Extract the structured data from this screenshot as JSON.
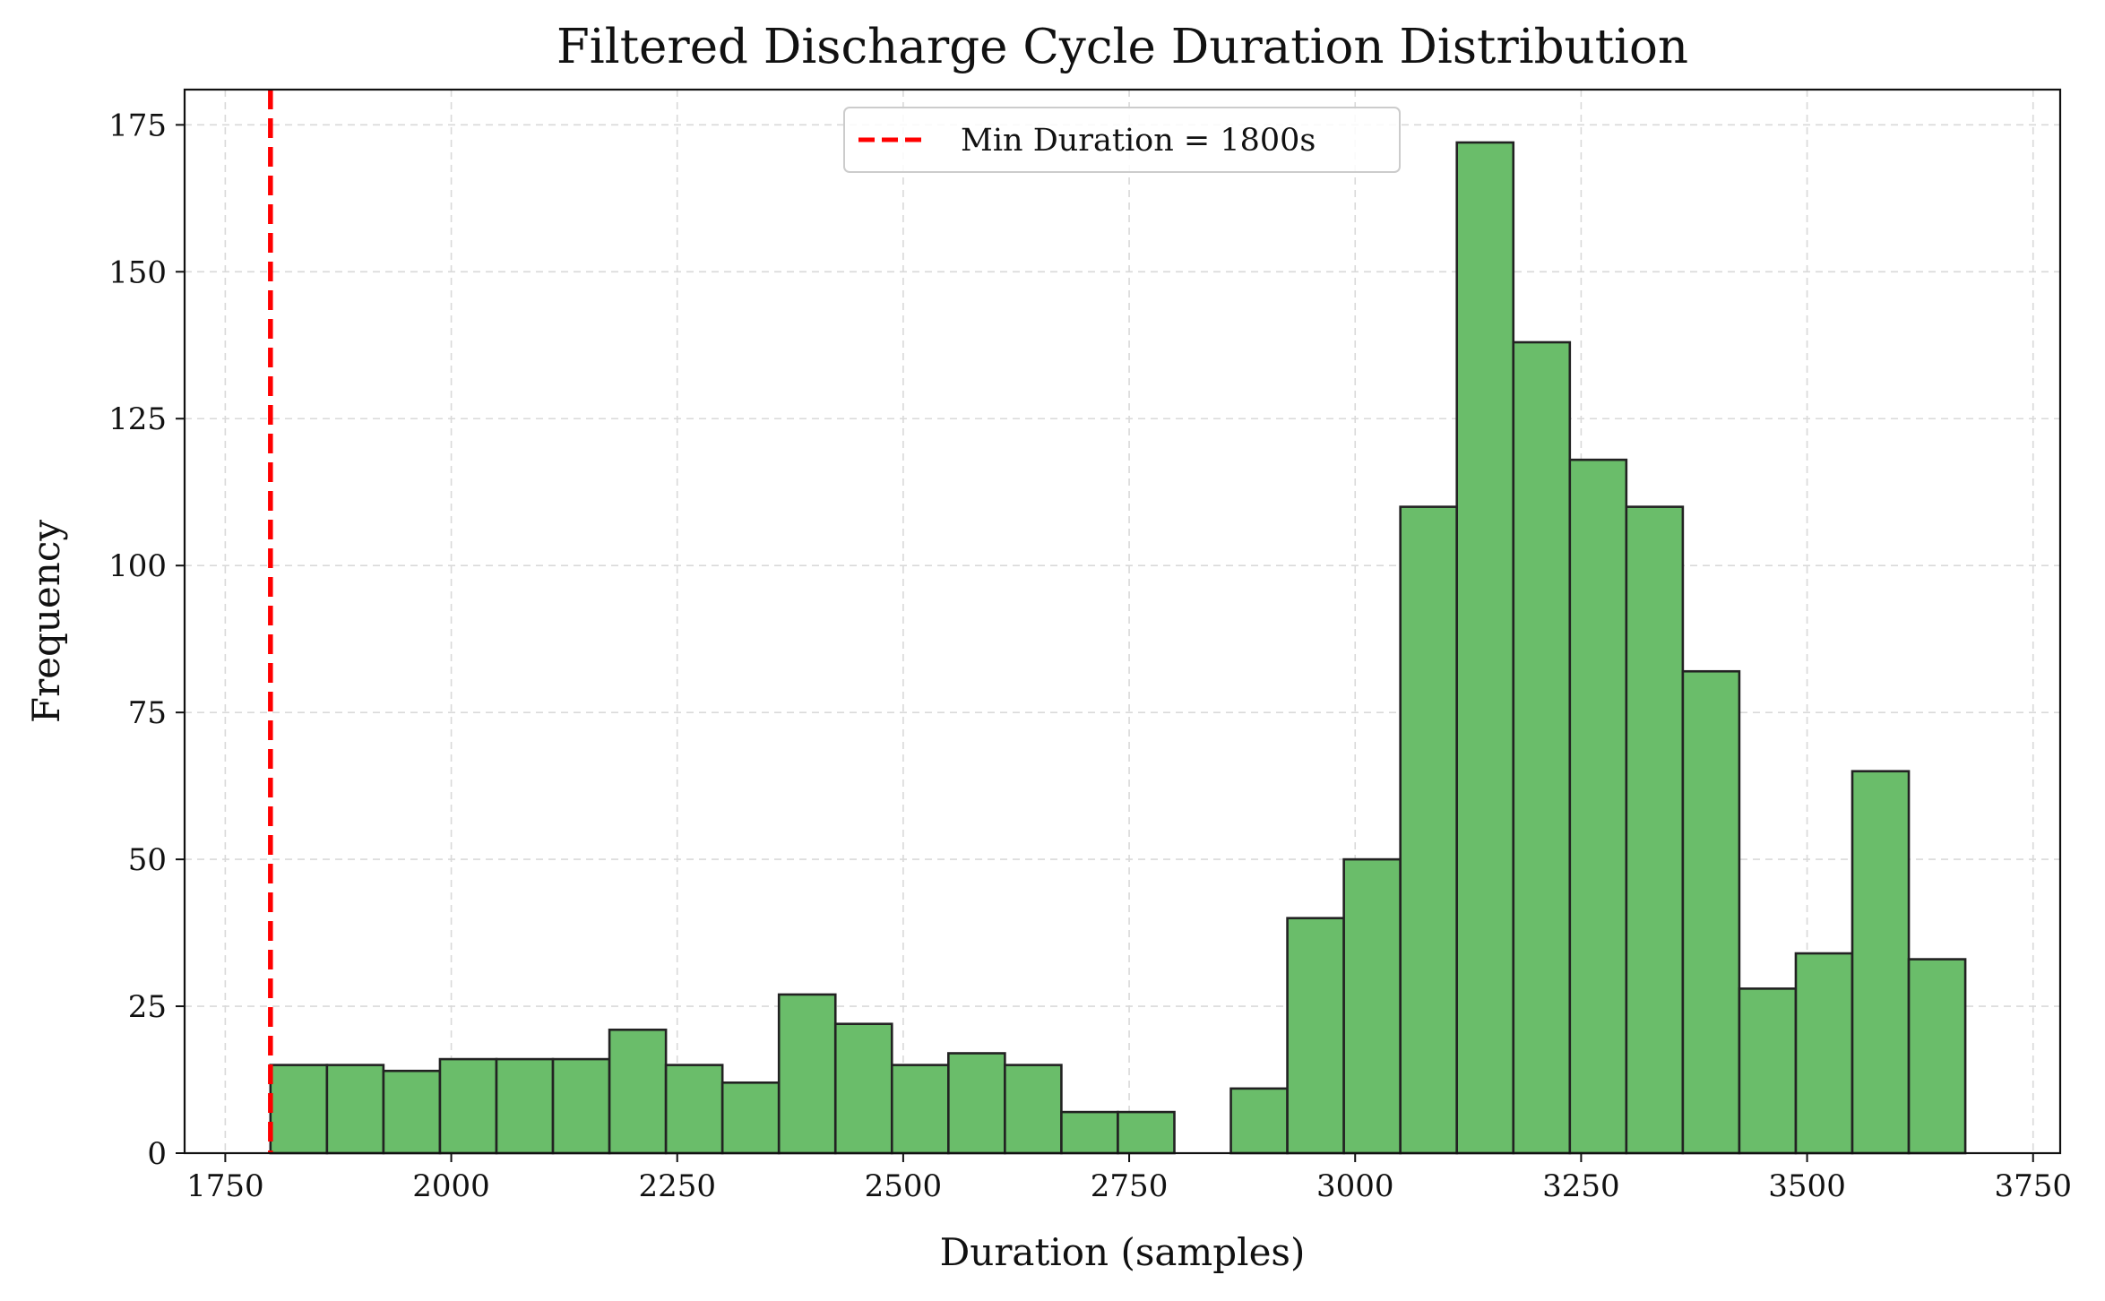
{
  "chart_data": {
    "type": "bar",
    "title": "Filtered Discharge Cycle Duration Distribution",
    "xlabel": "Duration (samples)",
    "ylabel": "Frequency",
    "xlim": [
      1705,
      3780
    ],
    "ylim": [
      0,
      181
    ],
    "xticks": [
      1750,
      2000,
      2250,
      2500,
      2750,
      3000,
      3250,
      3500,
      3750
    ],
    "yticks": [
      0,
      25,
      50,
      75,
      100,
      125,
      150,
      175
    ],
    "grid": true,
    "legend_position": "upper center",
    "bins": [
      {
        "x0": 1800,
        "x1": 1862.5,
        "count": 15
      },
      {
        "x0": 1862.5,
        "x1": 1925,
        "count": 15
      },
      {
        "x0": 1925,
        "x1": 1987.5,
        "count": 14
      },
      {
        "x0": 1987.5,
        "x1": 2050,
        "count": 16
      },
      {
        "x0": 2050,
        "x1": 2112.5,
        "count": 16
      },
      {
        "x0": 2112.5,
        "x1": 2175,
        "count": 16
      },
      {
        "x0": 2175,
        "x1": 2237.5,
        "count": 21
      },
      {
        "x0": 2237.5,
        "x1": 2300,
        "count": 15
      },
      {
        "x0": 2300,
        "x1": 2362.5,
        "count": 12
      },
      {
        "x0": 2362.5,
        "x1": 2425,
        "count": 27
      },
      {
        "x0": 2425,
        "x1": 2487.5,
        "count": 22
      },
      {
        "x0": 2487.5,
        "x1": 2550,
        "count": 15
      },
      {
        "x0": 2550,
        "x1": 2612.5,
        "count": 17
      },
      {
        "x0": 2612.5,
        "x1": 2675,
        "count": 15
      },
      {
        "x0": 2675,
        "x1": 2737.5,
        "count": 7
      },
      {
        "x0": 2737.5,
        "x1": 2800,
        "count": 7
      },
      {
        "x0": 2800,
        "x1": 2862.5,
        "count": 0
      },
      {
        "x0": 2862.5,
        "x1": 2925,
        "count": 11
      },
      {
        "x0": 2925,
        "x1": 2987.5,
        "count": 40
      },
      {
        "x0": 2987.5,
        "x1": 3050,
        "count": 50
      },
      {
        "x0": 3050,
        "x1": 3112.5,
        "count": 110
      },
      {
        "x0": 3112.5,
        "x1": 3175,
        "count": 172
      },
      {
        "x0": 3175,
        "x1": 3237.5,
        "count": 138
      },
      {
        "x0": 3237.5,
        "x1": 3300,
        "count": 118
      },
      {
        "x0": 3300,
        "x1": 3362.5,
        "count": 110
      },
      {
        "x0": 3362.5,
        "x1": 3425,
        "count": 82
      },
      {
        "x0": 3425,
        "x1": 3487.5,
        "count": 28
      },
      {
        "x0": 3487.5,
        "x1": 3550,
        "count": 34
      },
      {
        "x0": 3550,
        "x1": 3612.5,
        "count": 65
      },
      {
        "x0": 3612.5,
        "x1": 3675,
        "count": 33
      }
    ],
    "series": [
      {
        "name": "",
        "kind": "histogram",
        "color": "#6abd6a",
        "edgecolor": "#222222"
      }
    ],
    "reference_lines": [
      {
        "name": "Min Duration = 1800s",
        "x": 1800,
        "color": "#ff0000",
        "style": "dashed"
      }
    ],
    "legend": [
      "Min Duration = 1800s"
    ]
  }
}
